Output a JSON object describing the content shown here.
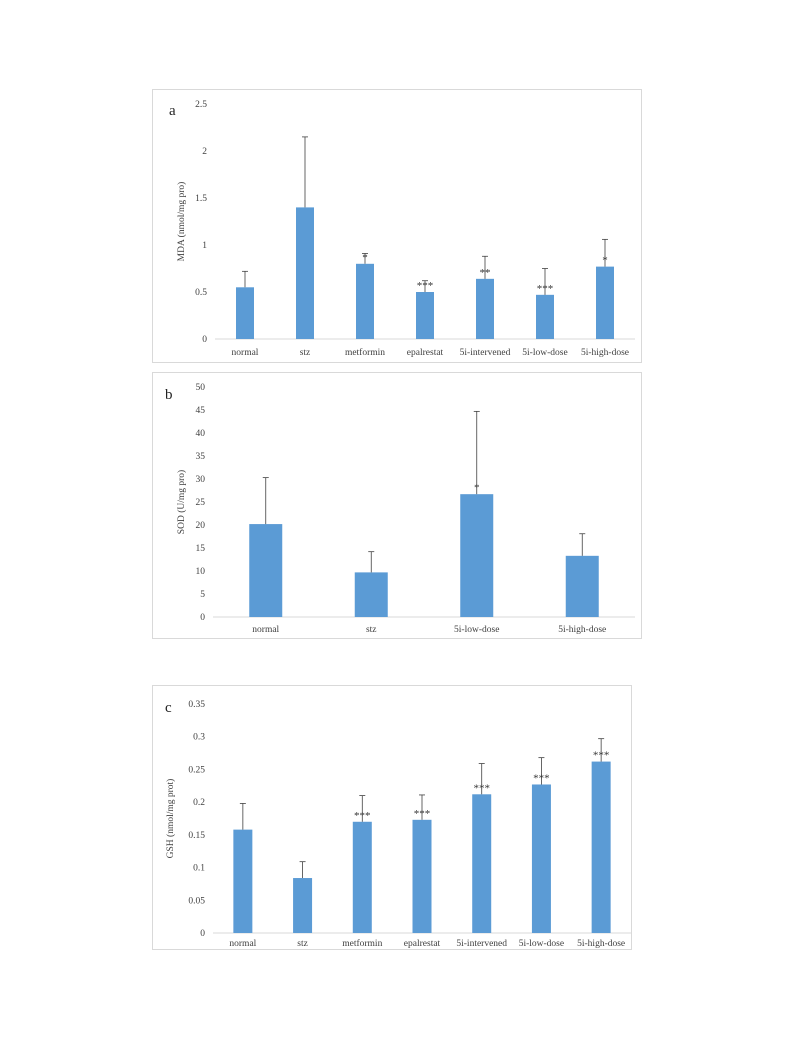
{
  "panels": [
    {
      "id": "a",
      "panel_label": "a",
      "ylabel": "MDA (nmol/mg pro)",
      "yticks": [
        "0",
        "0.5",
        "1",
        "1.5",
        "2",
        "2.5"
      ],
      "categories": [
        "normal",
        "stz",
        "metformin",
        "epalrestat",
        "5i-intervened",
        "5i-low-dose",
        "5i-high-dose"
      ],
      "values": [
        0.55,
        1.4,
        0.8,
        0.5,
        0.64,
        0.47,
        0.77
      ],
      "errors": [
        0.17,
        0.75,
        0.11,
        0.12,
        0.24,
        0.28,
        0.29
      ],
      "significance": [
        "",
        "",
        "*",
        "***",
        "**",
        "***",
        "*"
      ]
    },
    {
      "id": "b",
      "panel_label": "b",
      "ylabel": "SOD (U/mg pro)",
      "yticks": [
        "0",
        "5",
        "10",
        "15",
        "20",
        "25",
        "30",
        "35",
        "40",
        "45",
        "50"
      ],
      "categories": [
        "normal",
        "stz",
        "5i-low-dose",
        "5i-high-dose"
      ],
      "values": [
        20.2,
        9.7,
        26.7,
        13.3
      ],
      "errors": [
        10.1,
        4.5,
        18.0,
        4.8
      ],
      "significance": [
        "",
        "",
        "*",
        ""
      ]
    },
    {
      "id": "c",
      "panel_label": "c",
      "ylabel": "GSH (nmol/mg prot)",
      "yticks": [
        "0",
        "0.05",
        "0.1",
        "0.15",
        "0.2",
        "0.25",
        "0.3",
        "0.35"
      ],
      "categories": [
        "normal",
        "stz",
        "metformin",
        "epalrestat",
        "5i-intervened",
        "5i-low-dose",
        "5i-high-dose"
      ],
      "values": [
        0.158,
        0.084,
        0.17,
        0.173,
        0.212,
        0.227,
        0.262
      ],
      "errors": [
        0.04,
        0.025,
        0.04,
        0.038,
        0.047,
        0.041,
        0.035
      ],
      "significance": [
        "",
        "",
        "***",
        "***",
        "***",
        "***",
        "***"
      ]
    }
  ],
  "chart_data": [
    {
      "type": "bar",
      "title": "a",
      "ylabel": "MDA (nmol/mg pro)",
      "xlabel": "",
      "ylim": [
        0,
        2.5
      ],
      "categories": [
        "normal",
        "stz",
        "metformin",
        "epalrestat",
        "5i-intervened",
        "5i-low-dose",
        "5i-high-dose"
      ],
      "values": [
        0.55,
        1.4,
        0.8,
        0.5,
        0.64,
        0.47,
        0.77
      ],
      "error_bars": [
        0.17,
        0.75,
        0.11,
        0.12,
        0.24,
        0.28,
        0.29
      ],
      "annotations": [
        "",
        "",
        "*",
        "***",
        "**",
        "***",
        "*"
      ],
      "grid": false,
      "color": "#5b9bd5"
    },
    {
      "type": "bar",
      "title": "b",
      "ylabel": "SOD (U/mg pro)",
      "xlabel": "",
      "ylim": [
        0,
        50
      ],
      "categories": [
        "normal",
        "stz",
        "5i-low-dose",
        "5i-high-dose"
      ],
      "values": [
        20.2,
        9.7,
        26.7,
        13.3
      ],
      "error_bars": [
        10.1,
        4.5,
        18.0,
        4.8
      ],
      "annotations": [
        "",
        "",
        "*",
        ""
      ],
      "grid": false,
      "color": "#5b9bd5"
    },
    {
      "type": "bar",
      "title": "c",
      "ylabel": "GSH (nmol/mg prot)",
      "xlabel": "",
      "ylim": [
        0,
        0.35
      ],
      "categories": [
        "normal",
        "stz",
        "metformin",
        "epalrestat",
        "5i-intervened",
        "5i-low-dose",
        "5i-high-dose"
      ],
      "values": [
        0.158,
        0.084,
        0.17,
        0.173,
        0.212,
        0.227,
        0.262
      ],
      "error_bars": [
        0.04,
        0.025,
        0.04,
        0.038,
        0.047,
        0.041,
        0.035
      ],
      "annotations": [
        "",
        "",
        "***",
        "***",
        "***",
        "***",
        "***"
      ],
      "grid": false,
      "color": "#5b9bd5"
    }
  ],
  "colors": {
    "bar": "#5b9bd5",
    "axis": "#d9d9d9",
    "errorbar": "#404040"
  }
}
